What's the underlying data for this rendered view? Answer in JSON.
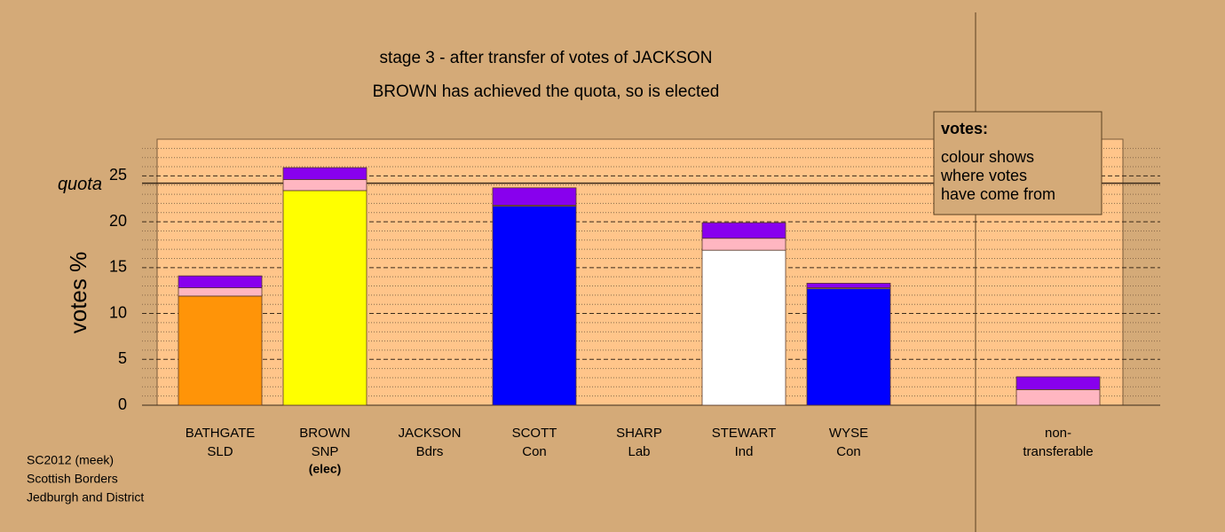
{
  "chart_data": {
    "type": "stacked_bar",
    "title": "stage 3 - after transfer of votes of JACKSON",
    "subtitle": "BROWN has achieved the quota, so is elected",
    "y_label": "votes %",
    "categories": [
      "BATHGATE",
      "BROWN",
      "JACKSON",
      "SCOTT",
      "SHARP",
      "STEWART",
      "WYSE",
      "non-"
    ],
    "parties": [
      "SLD",
      "SNP",
      "Bdrs",
      "Con",
      "Lab",
      "Ind",
      "Con",
      "transferable"
    ],
    "notes": [
      null,
      "(elec)",
      null,
      null,
      null,
      null,
      null,
      null
    ],
    "series": [
      {
        "colors": [
          "#ff9408",
          "#ffff00",
          null,
          "#0000ff",
          null,
          "#ffffff",
          "#0000ff",
          null
        ],
        "values": [
          11.9,
          23.4,
          null,
          21.7,
          null,
          16.9,
          12.7,
          null
        ]
      },
      {
        "color": "#ffb6c1",
        "values": [
          0.9,
          1.2,
          null,
          0.1,
          null,
          1.3,
          0.1,
          1.7
        ]
      },
      {
        "color": "#8800ee",
        "values": [
          1.3,
          1.3,
          null,
          1.9,
          null,
          1.7,
          0.5,
          1.4
        ]
      }
    ],
    "quota": {
      "value": 24.2,
      "label": "quota"
    },
    "ylim": [
      0,
      29
    ],
    "yticks": [
      0,
      5,
      10,
      15,
      20,
      25
    ],
    "minor_yticks": [
      1,
      2,
      3,
      4,
      6,
      7,
      8,
      9,
      11,
      12,
      13,
      14,
      16,
      17,
      18,
      19,
      21,
      22,
      23,
      24,
      26,
      27,
      28
    ],
    "legend": {
      "title": "votes:",
      "lines": [
        "colour shows",
        "where votes",
        "have come from"
      ]
    },
    "footer": [
      "SC2012 (meek)",
      "Scottish Borders",
      "Jedburgh and District"
    ]
  }
}
